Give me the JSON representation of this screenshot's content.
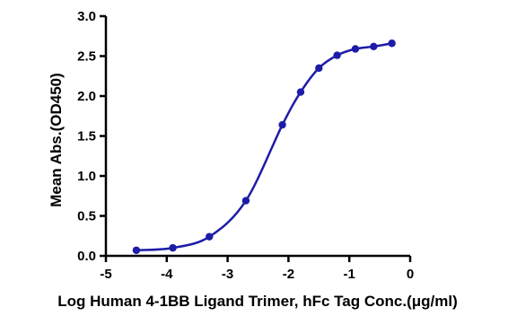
{
  "chart_data": {
    "type": "scatter",
    "title": "",
    "xlabel": "Log Human 4-1BB Ligand Trimer, hFc Tag Conc.(μg/ml)",
    "ylabel": "Mean Abs.(OD450)",
    "xlim": [
      -5,
      0
    ],
    "ylim": [
      0,
      3.0
    ],
    "xticks": [
      "-5",
      "-4",
      "-3",
      "-2",
      "-1",
      "0"
    ],
    "yticks": [
      "0.0",
      "0.5",
      "1.0",
      "1.5",
      "2.0",
      "2.5",
      "3.0"
    ],
    "grid": false,
    "series": [
      {
        "points": [
          {
            "x": -4.5,
            "y": 0.07
          },
          {
            "x": -3.9,
            "y": 0.1
          },
          {
            "x": -3.3,
            "y": 0.24
          },
          {
            "x": -2.7,
            "y": 0.69
          },
          {
            "x": -2.1,
            "y": 1.64
          },
          {
            "x": -1.8,
            "y": 2.05
          },
          {
            "x": -1.5,
            "y": 2.35
          },
          {
            "x": -1.2,
            "y": 2.51
          },
          {
            "x": -0.9,
            "y": 2.59
          },
          {
            "x": -0.6,
            "y": 2.62
          },
          {
            "x": -0.3,
            "y": 2.66
          }
        ],
        "color": "#1c1ca8"
      }
    ]
  }
}
